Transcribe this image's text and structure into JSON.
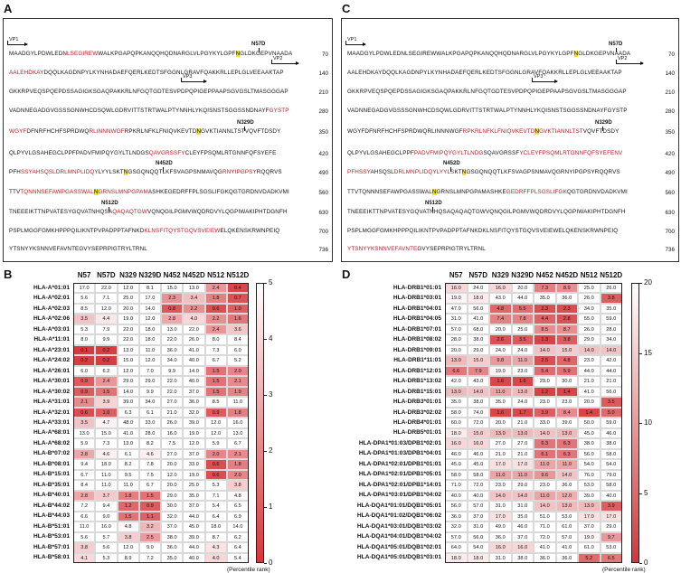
{
  "panels": {
    "a": "A",
    "b": "B",
    "c": "C",
    "d": "D"
  },
  "colors": {
    "low": "#d5363a",
    "high": "#ffffff",
    "highlight": "#f4e22a",
    "epitope_red": "#c0171d"
  },
  "sequence_panel_a": {
    "vp1_label": "VP1",
    "vp2_label": "VP2",
    "vp3_label": "VP3",
    "mutations": [
      "N57D",
      "N329D",
      "N452D",
      "N512D"
    ],
    "lines": [
      {
        "num": "70",
        "segs": [
          [
            "MAADGYLPDWLEDN",
            ""
          ],
          [
            "LSEGIREW",
            "red"
          ],
          [
            "WALKPGAPQPKANQQHQDNARGLVLPGYKYLGPF",
            ""
          ],
          [
            "N",
            "hl"
          ],
          [
            "GLDKGEPVNAADA",
            ""
          ]
        ]
      },
      {
        "num": "140",
        "segs": [
          [
            "AALEHDKAY",
            "red"
          ],
          [
            "DQQLKAGDNPYLKYNHADAEFQERLKEDTSFGGNLGRAVFQAKKRLLEPLGLVEEAAKTAP",
            ""
          ]
        ]
      },
      {
        "num": "210",
        "segs": [
          [
            "GKKRPVEQSPQEPDSSAGIGKSGAQPAKKRLNFGQTGDTESVPDPQPIGEPPAAPSGVGSLTMASGGGAP",
            ""
          ]
        ]
      },
      {
        "num": "280",
        "segs": [
          [
            "VADNNEGADGVGSSSGNWHCDSQWLGDRVITTSTRTWALPTYNNHLYKQISNSTSGGSSNDNAYF",
            ""
          ],
          [
            "GYSTP",
            "red"
          ]
        ]
      },
      {
        "num": "350",
        "segs": [
          [
            "WGYF",
            "red"
          ],
          [
            "DFNRFHCHFSPRDWQ",
            ""
          ],
          [
            "RLINNNWGF",
            "red"
          ],
          [
            "RPKRLNFKLFNIQVKEVTD",
            ""
          ],
          [
            "N",
            "hl"
          ],
          [
            "GVKTIANNLTSTVQVFTDSDY",
            ""
          ]
        ]
      },
      {
        "num": "420",
        "segs": [
          [
            "QLPYVLGSAHEGCLPPFPADVFMIPQYGYLTLNDGS",
            ""
          ],
          [
            "QAVGRSSFY",
            "red"
          ],
          [
            "CLEYFPSQMLRTGNNFQFSYEFE",
            ""
          ]
        ]
      },
      {
        "num": "490",
        "segs": [
          [
            "PFH",
            ""
          ],
          [
            "SSYAHSQSLD",
            "red"
          ],
          [
            "RLMNPLIDQY",
            "red"
          ],
          [
            "LYYLSKT",
            ""
          ],
          [
            "N",
            "hl"
          ],
          [
            "GSGQNQQTLKFSVAGPSNMAVQG",
            ""
          ],
          [
            "RNYIPGPSY",
            "red"
          ],
          [
            "RQQRVS",
            ""
          ]
        ]
      },
      {
        "num": "560",
        "segs": [
          [
            "TTV",
            ""
          ],
          [
            "TQNNNSEFAWPGASSWAL",
            "red"
          ],
          [
            "N",
            "hl"
          ],
          [
            "GRNSLMNPGPAM",
            "red"
          ],
          [
            "ASHKEGEDRFFPLSGSLIFGKQGTGRDNVDADKVMI",
            ""
          ]
        ]
      },
      {
        "num": "630",
        "segs": [
          [
            "TNEEEIKTTNPVATESYGQVATNHQSA",
            ""
          ],
          [
            "QAQAQTGW",
            "red"
          ],
          [
            "VQNQGILPGMVWQDRDVYLQGPIWAKIPHTDGNFH",
            ""
          ]
        ]
      },
      {
        "num": "700",
        "segs": [
          [
            "PSPLMGGFGMKHPPPQILIKNTPVPADPPTAFNKD",
            ""
          ],
          [
            "KLNSFITQYS",
            "red"
          ],
          [
            "TGQVSVEIEW",
            "red"
          ],
          [
            "ELQKENSKRWNPEIQ",
            ""
          ]
        ]
      },
      {
        "num": "736",
        "segs": [
          [
            "YTSNYYKSNNVEFAVNTEGVYSEPRPIGTRYLTRNL",
            ""
          ]
        ]
      }
    ]
  },
  "sequence_panel_c": {
    "vp1_label": "VP1",
    "vp2_label": "VP2",
    "vp3_label": "VP3",
    "mutations": [
      "N57D",
      "N329D",
      "N452D",
      "N512D"
    ],
    "lines": [
      {
        "num": "70",
        "segs": [
          [
            "MAADGYLPDWLEDNLSEGIREWWALKPGAPQPKANQQHQDNARGLVLPGYKYLGPF",
            ""
          ],
          [
            "N",
            "hl"
          ],
          [
            "GLDKGEPVNAADA",
            ""
          ]
        ]
      },
      {
        "num": "140",
        "segs": [
          [
            "AALEHDKAYDQQLKAGDNPYLKYNHADAEFQERLKEDTSFGGNLGRAVFQAKKRLLEPLGLVEEAAKTAP",
            ""
          ]
        ]
      },
      {
        "num": "210",
        "segs": [
          [
            "GKKRPVEQSPQEPDSSAGIGKSGAQPAKKRLNFGQTGDTESVPDPQPIGEPPAAPSGVGSLTMASGGGAP",
            ""
          ]
        ]
      },
      {
        "num": "280",
        "segs": [
          [
            "VADNNEGADGVGSSSGNWHCDSQWLGDRVITTSTRTWALPTYNNHLYKQISNSTSGGSSNDNAYFGYSTP",
            ""
          ]
        ]
      },
      {
        "num": "350",
        "segs": [
          [
            "WGYFDFNRFHCHFSPRDWQRLINNNWGF",
            ""
          ],
          [
            "RPKRLNFKLFNIQVKEVTD",
            "red"
          ],
          [
            "N",
            "hl"
          ],
          [
            "GVKTIANNLTST",
            "red"
          ],
          [
            "VQVFTDSDY",
            ""
          ]
        ]
      },
      {
        "num": "420",
        "segs": [
          [
            "QLPYVLGSAHEGCLPPF",
            ""
          ],
          [
            "PADVFMIPQYGYLTLNDG",
            "red"
          ],
          [
            "SQAVGRSSF",
            ""
          ],
          [
            "YCLEYFPSQMLRTGNNFQFSYEFENV",
            "red"
          ]
        ]
      },
      {
        "num": "490",
        "segs": [
          [
            "PFHSSY",
            "red"
          ],
          [
            "AHSQSL",
            ""
          ],
          [
            "DRLMNPLIDQYLYYLS",
            "red"
          ],
          [
            "KT",
            ""
          ],
          [
            "N",
            "hl"
          ],
          [
            "GSGQNQQTLKFSVAGPSNMAVQG",
            ""
          ],
          [
            "RNYIPGPSYRQQRVS",
            ""
          ]
        ]
      },
      {
        "num": "560",
        "segs": [
          [
            "TTVTQNNNSEFAWPGASSWAL",
            ""
          ],
          [
            "N",
            "hl"
          ],
          [
            "GRNSLMNPGPAMASHKE",
            ""
          ],
          [
            "GEDRFFPLSGSLIFGK",
            "red"
          ],
          [
            "QGTGRDNVDADKVMI",
            ""
          ]
        ]
      },
      {
        "num": "630",
        "segs": [
          [
            "TNEEEIKTTNPVATESYGQVATNHQSAQAQAQTGWVQNQGILPGMVWQDRDVYLQGPIWAKIPHTDGNFH",
            ""
          ]
        ]
      },
      {
        "num": "700",
        "segs": [
          [
            "PSPLMGGFGMKHPPPQILIKNTPVPADPPTAFNKDKLNSFITQYSTGQVSVEIEWELQKENSKRWNPEIQ",
            ""
          ]
        ]
      },
      {
        "num": "736",
        "segs": [
          [
            "YTSNYYKSNNVEFAVNTE",
            "red"
          ],
          [
            "GVYSEPRPIGTRYLTRNL",
            ""
          ]
        ]
      }
    ]
  },
  "chart_data": [
    {
      "type": "heatmap",
      "panel": "B",
      "columns": [
        "N57",
        "N57D",
        "N329",
        "N329D",
        "N452",
        "N452D",
        "N512",
        "N512D"
      ],
      "rows": [
        "HLA-A*01:01",
        "HLA-A*02:01",
        "HLA-A*02:03",
        "HLA-A*02:06",
        "HLA-A*03:01",
        "HLA-A*11:01",
        "HLA-A*23:01",
        "HLA-A*24:02",
        "HLA-A*26:01",
        "HLA-A*30:01",
        "HLA-A*30:02",
        "HLA-A*31:01",
        "HLA-A*32:01",
        "HLA-A*33:01",
        "HLA-A*68:01",
        "HLA-A*68:02",
        "HLA-B*07:02",
        "HLA-B*08:01",
        "HLA-B*15:01",
        "HLA-B*35:01",
        "HLA-B*40:01",
        "HLA-B*44:02",
        "HLA-B*44:03",
        "HLA-B*51:01",
        "HLA-B*53:01",
        "HLA-B*57:01",
        "HLA-B*58:01"
      ],
      "values": [
        [
          17.0,
          22.0,
          12.0,
          8.1,
          15.0,
          13.0,
          2.4,
          0.4
        ],
        [
          5.6,
          7.1,
          25.0,
          17.0,
          2.3,
          3.4,
          1.8,
          0.7
        ],
        [
          8.5,
          12.0,
          20.0,
          14.0,
          0.8,
          2.2,
          0.6,
          1.0
        ],
        [
          3.5,
          4.4,
          19.0,
          12.0,
          2.8,
          4.0,
          2.2,
          1.6
        ],
        [
          5.3,
          7.9,
          22.0,
          18.0,
          13.0,
          22.0,
          2.4,
          3.6
        ],
        [
          8.0,
          9.9,
          22.0,
          18.0,
          22.0,
          26.0,
          8.0,
          8.4
        ],
        [
          0.1,
          0.2,
          13.0,
          11.0,
          36.0,
          41.0,
          7.3,
          6.0
        ],
        [
          0.2,
          0.2,
          15.0,
          12.0,
          34.0,
          40.0,
          6.7,
          5.2
        ],
        [
          6.0,
          6.2,
          12.0,
          7.0,
          9.9,
          14.0,
          1.5,
          2.0
        ],
        [
          0.9,
          2.4,
          29.0,
          29.0,
          22.0,
          40.0,
          1.5,
          2.1
        ],
        [
          0.9,
          1.5,
          14.0,
          9.9,
          22.0,
          37.0,
          1.5,
          1.9
        ],
        [
          2.1,
          3.9,
          39.0,
          34.0,
          27.0,
          36.0,
          8.5,
          11.0
        ],
        [
          0.6,
          1.0,
          6.3,
          6.1,
          21.0,
          32.0,
          0.9,
          1.8
        ],
        [
          3.5,
          4.7,
          48.0,
          33.0,
          26.0,
          39.0,
          12.0,
          16.0
        ],
        [
          13.0,
          15.0,
          41.0,
          28.0,
          16.0,
          19.0,
          12.0,
          13.0
        ],
        [
          5.9,
          7.3,
          13.0,
          8.2,
          7.5,
          12.0,
          5.9,
          6.7
        ],
        [
          2.8,
          4.6,
          6.1,
          4.6,
          27.0,
          37.0,
          2.0,
          2.1
        ],
        [
          9.4,
          18.0,
          8.2,
          7.8,
          20.0,
          33.0,
          0.6,
          1.8
        ],
        [
          6.7,
          11.0,
          9.5,
          7.5,
          12.0,
          19.0,
          0.6,
          2.0
        ],
        [
          8.4,
          11.0,
          11.0,
          6.7,
          20.0,
          25.0,
          5.3,
          3.8
        ],
        [
          2.8,
          3.7,
          1.8,
          1.5,
          29.0,
          35.0,
          7.1,
          4.8
        ],
        [
          7.2,
          9.4,
          1.2,
          0.9,
          30.0,
          37.0,
          5.4,
          6.5
        ],
        [
          6.6,
          9.0,
          1.5,
          1.1,
          32.0,
          44.0,
          6.4,
          6.9
        ],
        [
          11.0,
          16.0,
          4.8,
          3.2,
          37.0,
          45.0,
          18.0,
          14.0
        ],
        [
          5.6,
          5.7,
          3.8,
          2.5,
          38.0,
          39.0,
          8.7,
          6.2
        ],
        [
          3.8,
          5.6,
          12.0,
          9.0,
          36.0,
          44.0,
          4.3,
          6.4
        ],
        [
          4.1,
          5.3,
          8.9,
          7.2,
          35.0,
          40.0,
          4.0,
          5.4
        ]
      ],
      "colorbar": {
        "min": 0,
        "max": 5,
        "ticks": [
          0,
          1,
          2,
          3,
          4,
          5
        ],
        "label": "(Percentile rank)"
      }
    },
    {
      "type": "heatmap",
      "panel": "D",
      "columns": [
        "N57",
        "N57D",
        "N329",
        "N329D",
        "N452",
        "N452D",
        "N512",
        "N512D"
      ],
      "rows": [
        "HLA-DRB1*01:01",
        "HLA-DRB1*03:01",
        "HLA-DRB1*04:01",
        "HLA-DRB1*04:05",
        "HLA-DRB1*07:01",
        "HLA-DRB1*08:02",
        "HLA-DRB1*09:01",
        "HLA-DRB1*11:01",
        "HLA-DRB1*12:01",
        "HLA-DRB1*13:02",
        "HLA-DRB1*15:01",
        "HLA-DRB3*01:01",
        "HLA-DRB3*02:02",
        "HLA-DRB4*01:01",
        "HLA-DRB5*01:01",
        "HLA-DPA1*01:03/DPB1*02:01",
        "HLA-DPA1*01:03/DPB1*04:01",
        "HLA-DPA1*02:01/DPB1*01:01",
        "HLA-DPA1*02:01/DPB1*05:01",
        "HLA-DPA1*02:01/DPB1*14:01",
        "HLA-DPA1*03:01/DPB1*04:02",
        "HLA-DQA1*01:01/DQB1*05:01",
        "HLA-DQA1*01:02/DQB1*06:02",
        "HLA-DQA1*03:01/DQB1*03:02",
        "HLA-DQA1*04:01/DQB1*04:02",
        "HLA-DQA1*05:01/DQB1*02:01",
        "HLA-DQA1*05:01/DQB1*03:01"
      ],
      "values": [
        [
          16.0,
          24.0,
          16.0,
          20.0,
          7.3,
          8.9,
          25.0,
          26.0
        ],
        [
          19.0,
          18.0,
          43.0,
          44.0,
          35.0,
          36.0,
          26.0,
          3.8
        ],
        [
          47.0,
          56.0,
          4.8,
          5.5,
          2.3,
          2.3,
          34.0,
          35.0
        ],
        [
          31.0,
          41.0,
          7.4,
          7.8,
          4.4,
          2.8,
          55.0,
          59.0
        ],
        [
          57.0,
          68.0,
          20.0,
          25.0,
          8.5,
          8.7,
          26.0,
          28.0
        ],
        [
          28.0,
          38.0,
          2.6,
          3.5,
          1.3,
          3.8,
          29.0,
          34.0
        ],
        [
          20.0,
          29.0,
          24.0,
          24.0,
          14.0,
          15.0,
          14.0,
          14.0
        ],
        [
          13.0,
          15.0,
          9.8,
          11.0,
          2.5,
          4.8,
          23.0,
          42.0
        ],
        [
          6.6,
          7.9,
          19.0,
          23.0,
          5.4,
          5.9,
          44.0,
          44.0
        ],
        [
          42.0,
          43.0,
          1.6,
          1.6,
          29.0,
          30.0,
          21.0,
          21.0
        ],
        [
          13.0,
          14.0,
          11.0,
          13.0,
          1.2,
          1.4,
          41.0,
          56.0
        ],
        [
          35.0,
          38.0,
          35.0,
          24.0,
          23.0,
          23.0,
          20.0,
          3.5
        ],
        [
          58.0,
          74.0,
          1.6,
          1.7,
          3.9,
          8.4,
          1.4,
          5.0
        ],
        [
          60.0,
          72.0,
          20.0,
          21.0,
          33.0,
          39.0,
          50.0,
          59.0
        ],
        [
          18.0,
          15.0,
          13.0,
          13.0,
          14.0,
          13.0,
          45.0,
          46.0
        ],
        [
          16.0,
          16.0,
          27.0,
          27.0,
          6.3,
          6.3,
          38.0,
          38.0
        ],
        [
          46.0,
          46.0,
          21.0,
          21.0,
          6.1,
          6.3,
          56.0,
          58.0
        ],
        [
          45.0,
          45.0,
          17.0,
          17.0,
          11.0,
          11.0,
          54.0,
          54.0
        ],
        [
          58.0,
          58.0,
          11.0,
          11.0,
          9.6,
          14.0,
          76.0,
          79.0
        ],
        [
          71.0,
          72.0,
          23.0,
          29.0,
          23.0,
          36.0,
          53.0,
          58.0
        ],
        [
          40.0,
          40.0,
          14.0,
          14.0,
          11.0,
          12.0,
          39.0,
          40.0
        ],
        [
          56.0,
          57.0,
          31.0,
          31.0,
          14.0,
          13.0,
          13.0,
          3.9
        ],
        [
          36.0,
          37.0,
          17.0,
          35.0,
          51.0,
          53.0,
          17.0,
          17.0
        ],
        [
          32.0,
          31.0,
          49.0,
          46.0,
          71.0,
          61.0,
          37.0,
          29.0
        ],
        [
          57.0,
          56.0,
          36.0,
          37.0,
          72.0,
          57.0,
          19.0,
          9.7
        ],
        [
          64.0,
          54.0,
          16.0,
          16.0,
          41.0,
          41.0,
          61.0,
          53.0
        ],
        [
          18.0,
          18.0,
          31.0,
          38.0,
          36.0,
          36.0,
          5.2,
          6.5
        ]
      ],
      "colorbar": {
        "min": 0,
        "max": 20,
        "ticks": [
          0,
          5,
          10,
          15,
          20
        ],
        "label": "(Percentile rank)"
      }
    }
  ]
}
